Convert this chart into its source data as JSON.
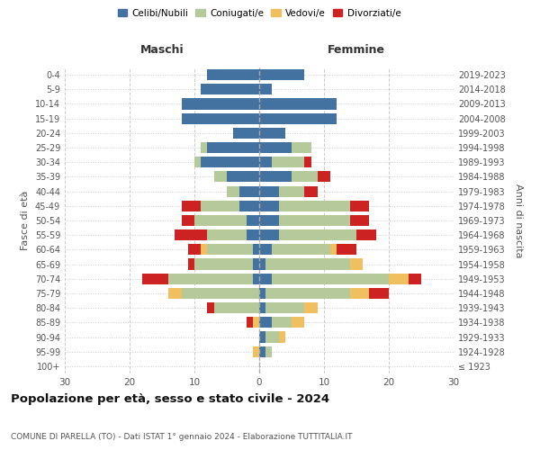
{
  "age_groups": [
    "100+",
    "95-99",
    "90-94",
    "85-89",
    "80-84",
    "75-79",
    "70-74",
    "65-69",
    "60-64",
    "55-59",
    "50-54",
    "45-49",
    "40-44",
    "35-39",
    "30-34",
    "25-29",
    "20-24",
    "15-19",
    "10-14",
    "5-9",
    "0-4"
  ],
  "birth_years": [
    "≤ 1923",
    "1924-1928",
    "1929-1933",
    "1934-1938",
    "1939-1943",
    "1944-1948",
    "1949-1953",
    "1954-1958",
    "1959-1963",
    "1964-1968",
    "1969-1973",
    "1974-1978",
    "1979-1983",
    "1984-1988",
    "1989-1993",
    "1994-1998",
    "1999-2003",
    "2004-2008",
    "2009-2013",
    "2014-2018",
    "2019-2023"
  ],
  "maschi": {
    "celibe": [
      0,
      0,
      0,
      0,
      0,
      0,
      1,
      1,
      1,
      2,
      2,
      3,
      3,
      5,
      9,
      8,
      4,
      12,
      12,
      9,
      8
    ],
    "coniugato": [
      0,
      0,
      0,
      0,
      7,
      12,
      13,
      9,
      7,
      6,
      8,
      6,
      2,
      2,
      1,
      1,
      0,
      0,
      0,
      0,
      0
    ],
    "vedovo": [
      0,
      1,
      0,
      1,
      0,
      2,
      0,
      0,
      1,
      0,
      0,
      0,
      0,
      0,
      0,
      0,
      0,
      0,
      0,
      0,
      0
    ],
    "divorziato": [
      0,
      0,
      0,
      1,
      1,
      0,
      4,
      1,
      2,
      5,
      2,
      3,
      0,
      0,
      0,
      0,
      0,
      0,
      0,
      0,
      0
    ]
  },
  "femmine": {
    "nubile": [
      0,
      1,
      1,
      2,
      1,
      1,
      2,
      1,
      2,
      3,
      3,
      3,
      3,
      5,
      2,
      5,
      4,
      12,
      12,
      2,
      7
    ],
    "coniugata": [
      0,
      1,
      2,
      3,
      6,
      13,
      18,
      13,
      9,
      12,
      11,
      11,
      4,
      4,
      5,
      3,
      0,
      0,
      0,
      0,
      0
    ],
    "vedova": [
      0,
      0,
      1,
      2,
      2,
      3,
      3,
      2,
      1,
      0,
      0,
      0,
      0,
      0,
      0,
      0,
      0,
      0,
      0,
      0,
      0
    ],
    "divorziata": [
      0,
      0,
      0,
      0,
      0,
      3,
      2,
      0,
      3,
      3,
      3,
      3,
      2,
      2,
      1,
      0,
      0,
      0,
      0,
      0,
      0
    ]
  },
  "colors": {
    "celibe": "#4472a0",
    "coniugato": "#b5c99a",
    "vedovo": "#f0c060",
    "divorziato": "#cc2222"
  },
  "title": "Popolazione per età, sesso e stato civile - 2024",
  "subtitle": "COMUNE DI PARELLA (TO) - Dati ISTAT 1° gennaio 2024 - Elaborazione TUTTITALIA.IT",
  "xlabel_left": "Maschi",
  "xlabel_right": "Femmine",
  "ylabel_left": "Fasce di età",
  "ylabel_right": "Anni di nascita",
  "xlim": 30,
  "legend_labels": [
    "Celibi/Nubili",
    "Coniugati/e",
    "Vedovi/e",
    "Divorziati/e"
  ]
}
